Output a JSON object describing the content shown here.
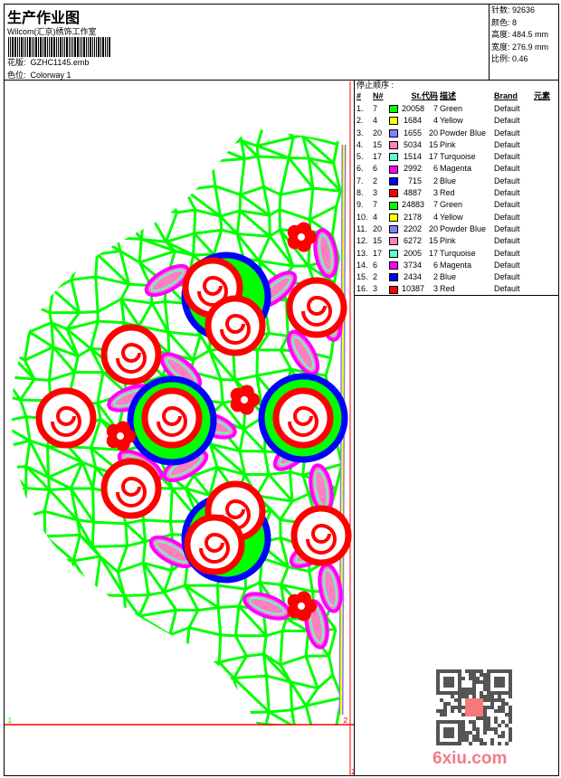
{
  "header": {
    "title": "生产作业图",
    "company": "Wilcom(汇京)绣饰工作室",
    "design_label": "花版:",
    "design_file": "GZHC1145.emb",
    "colorway_label": "色位:",
    "colorway": "Colorway 1"
  },
  "stats": [
    {
      "label": "针数",
      "value": "92636"
    },
    {
      "label": "颜色",
      "value": "8"
    },
    {
      "label": "高度",
      "value": "484.5 mm"
    },
    {
      "label": "宽度",
      "value": "276.9 mm"
    },
    {
      "label": "比例",
      "value": "0.46"
    }
  ],
  "stop_sequence": {
    "caption": "停止顺序 :",
    "headers": [
      "#",
      "N#",
      "St.",
      "代码",
      "描述",
      "Brand",
      "元素"
    ],
    "rows": [
      [
        "1.",
        "7",
        "#00ff00",
        "20058",
        "7",
        "Green",
        "Default"
      ],
      [
        "2.",
        "4",
        "#ffff00",
        "1684",
        "4",
        "Yellow",
        "Default"
      ],
      [
        "3.",
        "20",
        "#8080ff",
        "1655",
        "20",
        "Powder Blue",
        "Default"
      ],
      [
        "4.",
        "15",
        "#ff80c0",
        "5034",
        "15",
        "Pink",
        "Default"
      ],
      [
        "5.",
        "17",
        "#60ffd0",
        "1514",
        "17",
        "Turquoise",
        "Default"
      ],
      [
        "6.",
        "6",
        "#ff00ff",
        "2992",
        "6",
        "Magenta",
        "Default"
      ],
      [
        "7.",
        "2",
        "#0000ff",
        "715",
        "2",
        "Blue",
        "Default"
      ],
      [
        "8.",
        "3",
        "#ff0000",
        "4887",
        "3",
        "Red",
        "Default"
      ],
      [
        "9.",
        "7",
        "#00ff00",
        "24883",
        "7",
        "Green",
        "Default"
      ],
      [
        "10.",
        "4",
        "#ffff00",
        "2178",
        "4",
        "Yellow",
        "Default"
      ],
      [
        "11.",
        "20",
        "#8080ff",
        "2202",
        "20",
        "Powder Blue",
        "Default"
      ],
      [
        "12.",
        "15",
        "#ff80c0",
        "6272",
        "15",
        "Pink",
        "Default"
      ],
      [
        "13.",
        "17",
        "#60ffd0",
        "2005",
        "17",
        "Turquoise",
        "Default"
      ],
      [
        "14.",
        "6",
        "#ff00ff",
        "3734",
        "6",
        "Magenta",
        "Default"
      ],
      [
        "15.",
        "2",
        "#0000ff",
        "2434",
        "2",
        "Blue",
        "Default"
      ],
      [
        "16.",
        "3",
        "#ff0000",
        "10387",
        "3",
        "Red",
        "Default"
      ]
    ]
  },
  "markers": {
    "left": "1",
    "right": "2",
    "bottom": "2"
  },
  "watermark": "6xiu.com"
}
